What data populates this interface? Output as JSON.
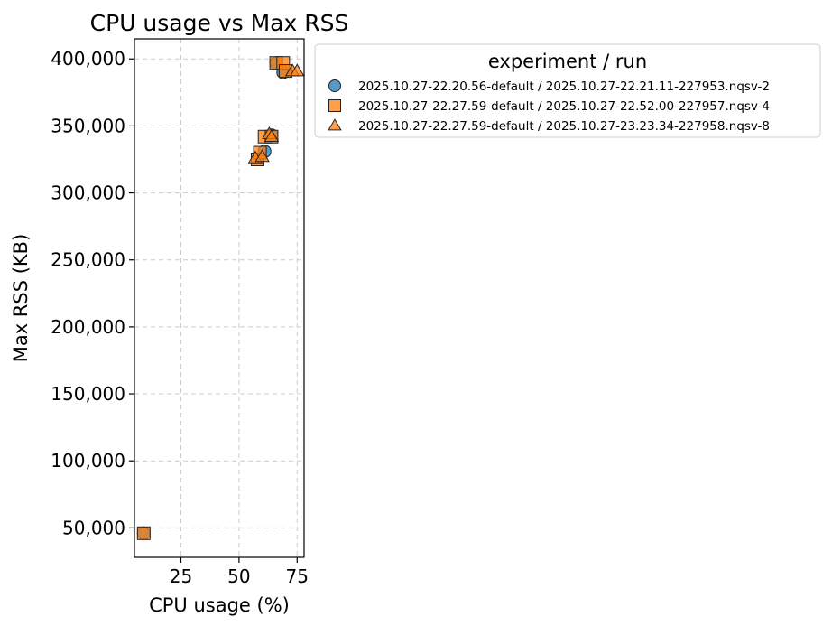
{
  "chart_data": {
    "type": "scatter",
    "title": "CPU usage vs Max RSS",
    "xlabel": "CPU usage (%)",
    "ylabel": "Max RSS (KB)",
    "xlim": [
      5,
      78
    ],
    "ylim": [
      28000,
      415000
    ],
    "xticks": [
      25,
      50,
      75
    ],
    "xtick_labels": [
      "25",
      "50",
      "75"
    ],
    "yticks": [
      50000,
      100000,
      150000,
      200000,
      250000,
      300000,
      350000,
      400000
    ],
    "ytick_labels": [
      "50,000",
      "100,000",
      "150,000",
      "200,000",
      "250,000",
      "300,000",
      "350,000",
      "400,000"
    ],
    "grid": true,
    "legend": {
      "title": "experiment / run",
      "placement": "outside-top-right"
    },
    "series": [
      {
        "name": "2025.10.27-22.20.56-default / 2025.10.27-22.21.11-227953.nqsv-2",
        "marker": "circle",
        "color": "#1f77b4",
        "points": [
          {
            "x": 9,
            "y": 46000
          },
          {
            "x": 61,
            "y": 331000
          },
          {
            "x": 64,
            "y": 343000
          },
          {
            "x": 69,
            "y": 390000
          },
          {
            "x": 66,
            "y": 397000
          }
        ]
      },
      {
        "name": "2025.10.27-22.27.59-default / 2025.10.27-22.52.00-227957.nqsv-4",
        "marker": "square",
        "color": "#ff7f0e",
        "points": [
          {
            "x": 9,
            "y": 46000
          },
          {
            "x": 58,
            "y": 325000
          },
          {
            "x": 59,
            "y": 330000
          },
          {
            "x": 61,
            "y": 342000
          },
          {
            "x": 64,
            "y": 342000
          },
          {
            "x": 66,
            "y": 397000
          },
          {
            "x": 69,
            "y": 397000
          },
          {
            "x": 70,
            "y": 391000
          }
        ]
      },
      {
        "name": "2025.10.27-22.27.59-default / 2025.10.27-23.23.34-227958.nqsv-8",
        "marker": "triangle",
        "color": "#ff7f0e",
        "points": [
          {
            "x": 57,
            "y": 326000
          },
          {
            "x": 60,
            "y": 327000
          },
          {
            "x": 63,
            "y": 344000
          },
          {
            "x": 64,
            "y": 342000
          },
          {
            "x": 73,
            "y": 391000
          },
          {
            "x": 75,
            "y": 391000
          }
        ]
      }
    ]
  }
}
